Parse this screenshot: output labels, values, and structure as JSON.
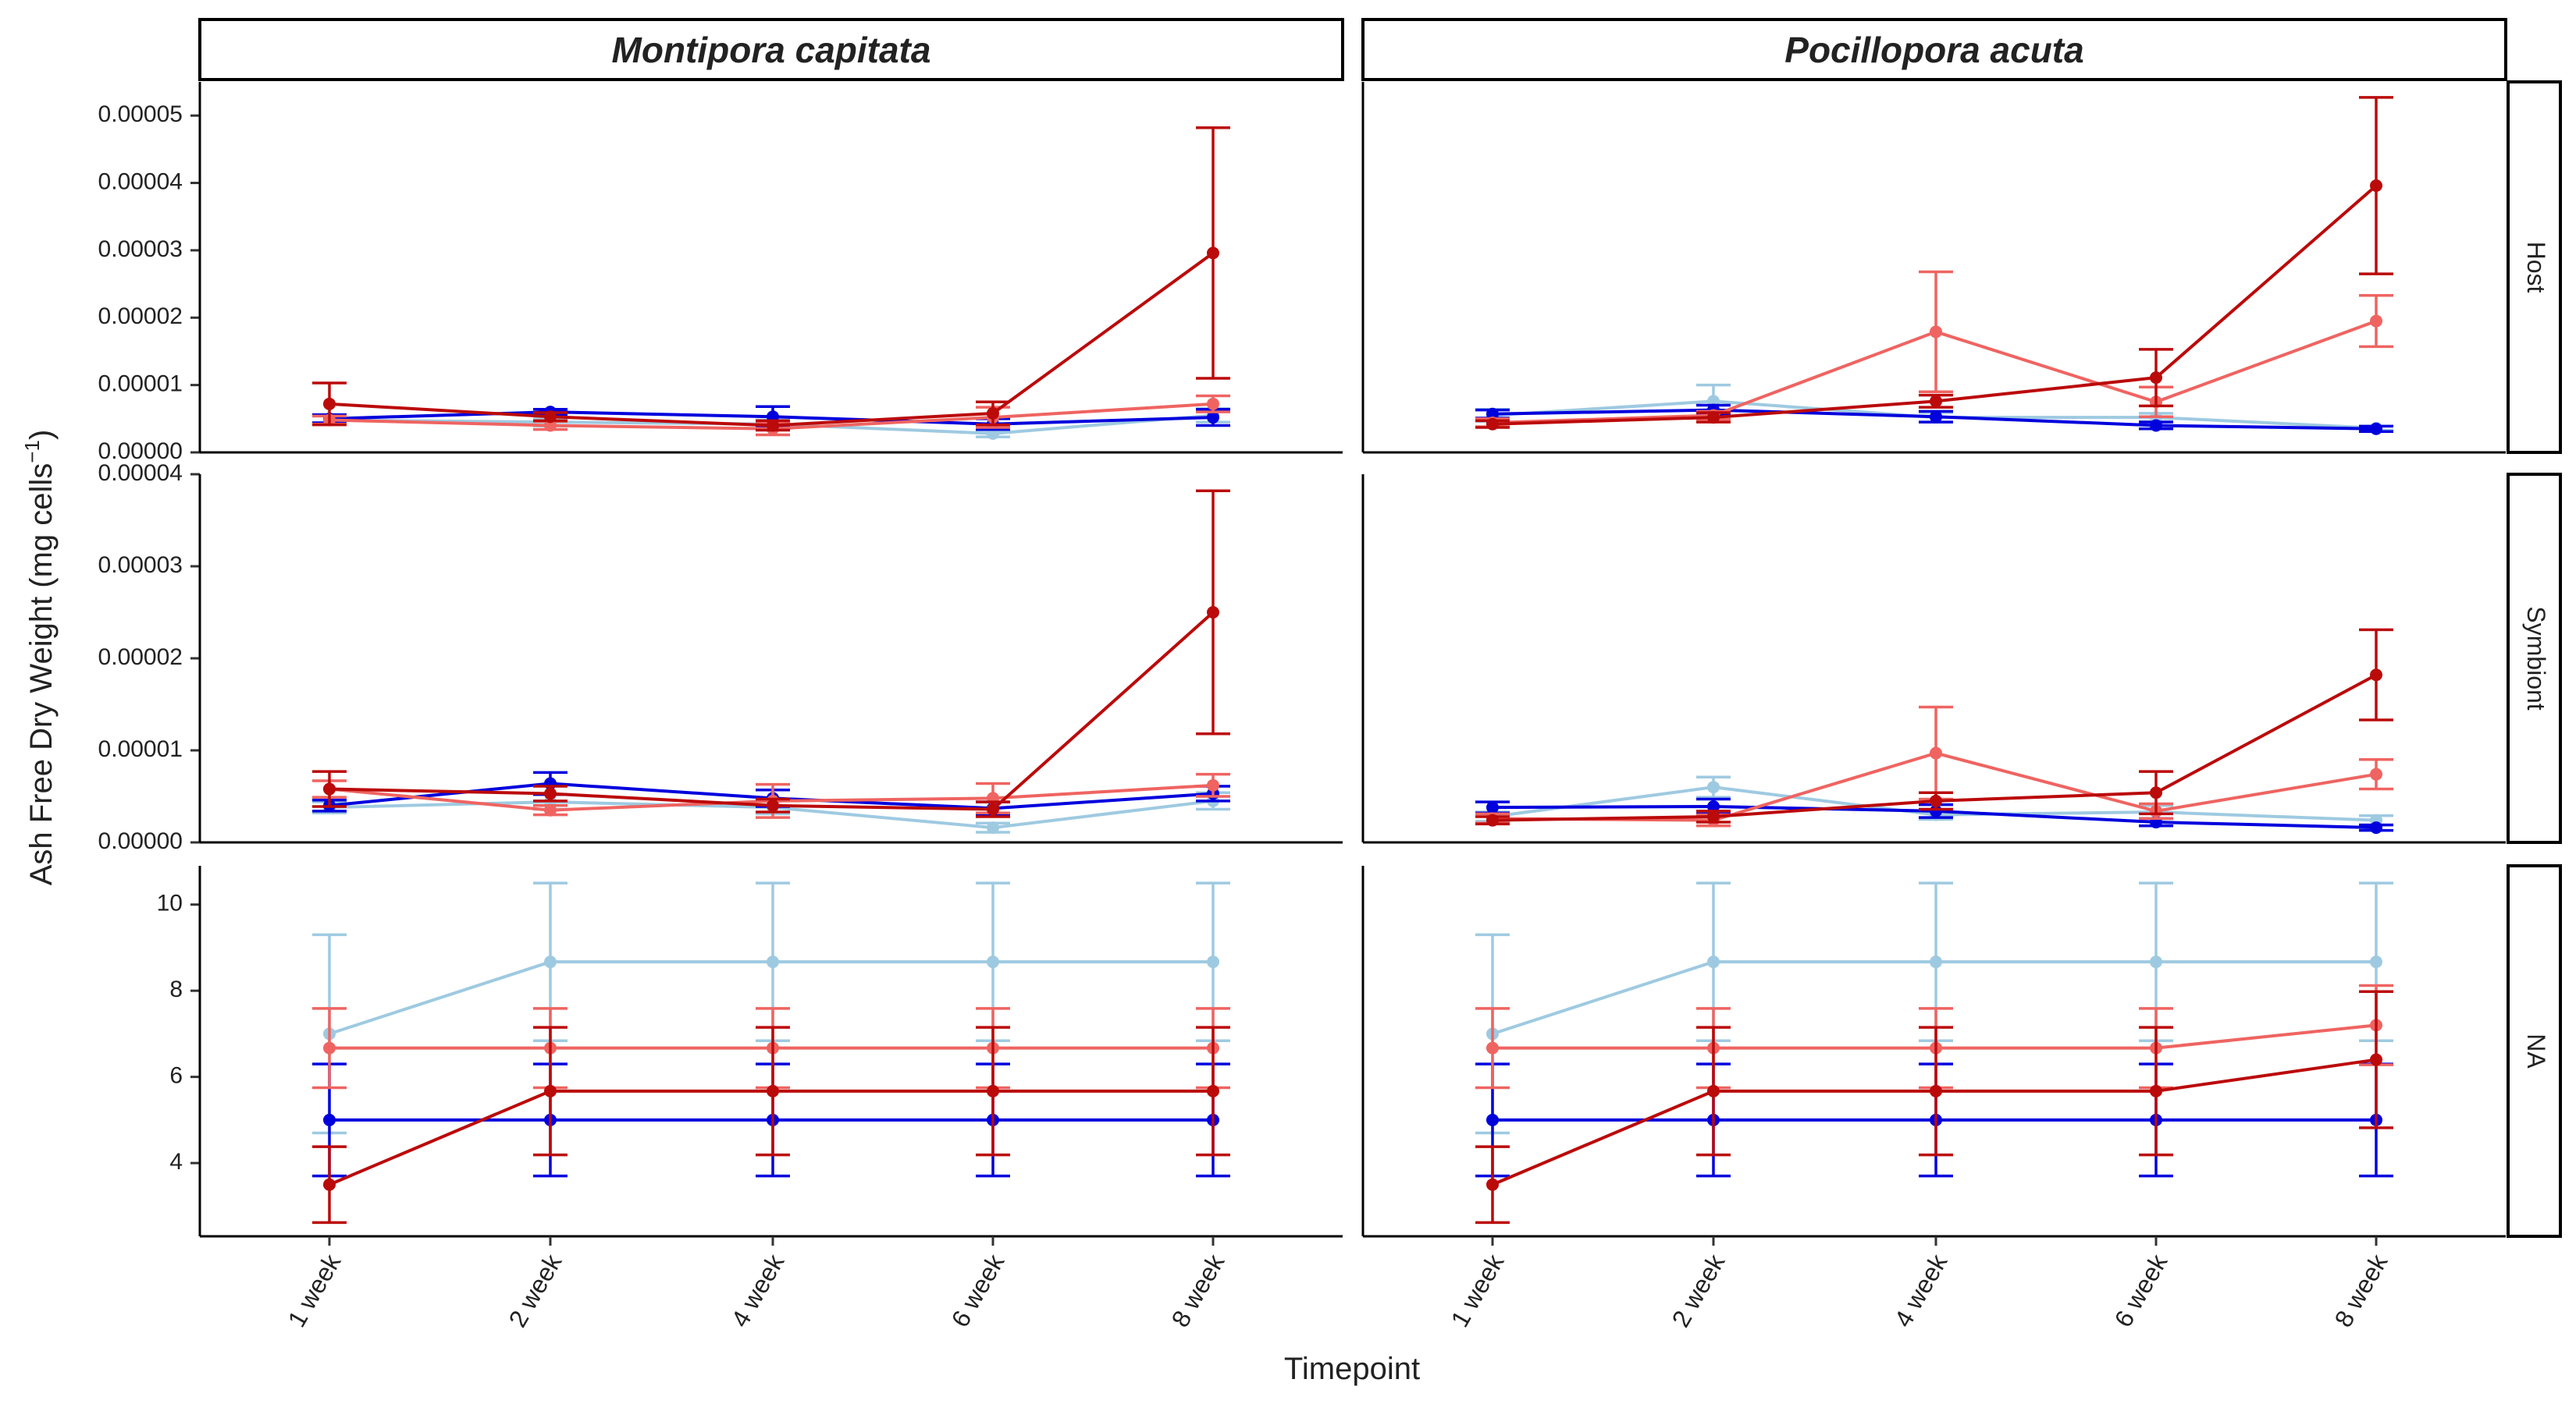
{
  "chart_data": {
    "type": "line",
    "x_title": "Timepoint",
    "y_title_main": "Ash Free Dry Weight (mg cells",
    "y_title_sup": "−1",
    "y_title_close": ")",
    "timepoints": [
      "1 week",
      "2 week",
      "4 week",
      "6 week",
      "8 week"
    ],
    "columns": [
      "Montipora capitata",
      "Pocillopora acuta"
    ],
    "rows": [
      "Host",
      "Symbiont",
      "NA"
    ],
    "colors": {
      "treatment_1": "#9ecae1",
      "treatment_2": "#0000dd",
      "treatment_3": "#ef6461",
      "treatment_4": "#bb0a0a"
    },
    "panels": {
      "Host": {
        "ylim": [
          0,
          5.5e-05
        ],
        "yticks": [
          {
            "v": 0,
            "label": "0.00000"
          },
          {
            "v": 1e-05,
            "label": "0.00001"
          },
          {
            "v": 2e-05,
            "label": "0.00002"
          },
          {
            "v": 3e-05,
            "label": "0.00003"
          },
          {
            "v": 4e-05,
            "label": "0.00004"
          },
          {
            "v": 5e-05,
            "label": "0.00005"
          }
        ],
        "Montipora capitata": [
          {
            "color": "treatment_1",
            "values": [
              4.8e-06,
              4.5e-06,
              4.2e-06,
              2.8e-06,
              5.5e-06
            ],
            "errors": [
              6e-07,
              6e-07,
              6e-07,
              5e-07,
              1e-06
            ]
          },
          {
            "color": "treatment_2",
            "values": [
              5e-06,
              6e-06,
              5.3e-06,
              4.2e-06,
              5.2e-06
            ],
            "errors": [
              6e-07,
              4e-07,
              1.5e-06,
              8e-07,
              1.2e-06
            ]
          },
          {
            "color": "treatment_3",
            "values": [
              4.8e-06,
              4e-06,
              3.5e-06,
              5.2e-06,
              7.2e-06
            ],
            "errors": [
              6e-07,
              6e-07,
              9e-07,
              1.5e-06,
              1.2e-06
            ]
          },
          {
            "color": "treatment_4",
            "values": [
              7.2e-06,
              5.3e-06,
              4e-06,
              5.8e-06,
              2.96e-05
            ],
            "errors": [
              3.1e-06,
              6e-07,
              7e-07,
              1.7e-06,
              1.86e-05
            ]
          }
        ],
        "Pocillopora acuta": [
          {
            "color": "treatment_1",
            "values": [
              5.5e-06,
              7.6e-06,
              5.2e-06,
              5.2e-06,
              3.6e-06
            ],
            "errors": [
              9e-07,
              2.4e-06,
              7e-07,
              6e-07,
              3e-07
            ]
          },
          {
            "color": "treatment_2",
            "values": [
              5.7e-06,
              6.3e-06,
              5.3e-06,
              4e-06,
              3.5e-06
            ],
            "errors": [
              6e-07,
              7e-07,
              8e-07,
              5e-07,
              4e-07
            ]
          },
          {
            "color": "treatment_3",
            "values": [
              4.4e-06,
              5.5e-06,
              1.79e-05,
              7.5e-06,
              1.95e-05
            ],
            "errors": [
              6e-07,
              6e-07,
              8.9e-06,
              2.2e-06,
              3.8e-06
            ]
          },
          {
            "color": "treatment_4",
            "values": [
              4.2e-06,
              5.2e-06,
              7.6e-06,
              1.11e-05,
              3.96e-05
            ],
            "errors": [
              5e-07,
              7e-07,
              9e-07,
              4.2e-06,
              1.31e-05
            ]
          }
        ]
      },
      "Symbiont": {
        "ylim": [
          0,
          4e-05
        ],
        "yticks": [
          {
            "v": 0,
            "label": "0.00000"
          },
          {
            "v": 1e-05,
            "label": "0.00001"
          },
          {
            "v": 2e-05,
            "label": "0.00002"
          },
          {
            "v": 3e-05,
            "label": "0.00003"
          },
          {
            "v": 4e-05,
            "label": "0.00004"
          }
        ],
        "Montipora capitata": [
          {
            "color": "treatment_1",
            "values": [
              3.8e-06,
              4.4e-06,
              3.8e-06,
              1.6e-06,
              4.5e-06
            ],
            "errors": [
              6e-07,
              8e-07,
              7e-07,
              5e-07,
              9e-07
            ]
          },
          {
            "color": "treatment_2",
            "values": [
              4e-06,
              6.4e-06,
              4.8e-06,
              3.7e-06,
              5.3e-06
            ],
            "errors": [
              6e-07,
              1.2e-06,
              9e-07,
              7e-07,
              8e-07
            ]
          },
          {
            "color": "treatment_3",
            "values": [
              5.8e-06,
              3.5e-06,
              4.5e-06,
              4.8e-06,
              6.2e-06
            ],
            "errors": [
              9e-07,
              5e-07,
              1.8e-06,
              1.6e-06,
              1.2e-06
            ]
          },
          {
            "color": "treatment_4",
            "values": [
              5.8e-06,
              5.3e-06,
              4e-06,
              3.6e-06,
              2.5e-05
            ],
            "errors": [
              1.9e-06,
              8e-07,
              7e-07,
              8e-07,
              1.32e-05
            ]
          }
        ],
        "Pocillopora acuta": [
          {
            "color": "treatment_1",
            "values": [
              2.8e-06,
              6e-06,
              3e-06,
              3.3e-06,
              2.4e-06
            ],
            "errors": [
              5e-07,
              1.1e-06,
              5e-07,
              7e-07,
              5e-07
            ]
          },
          {
            "color": "treatment_2",
            "values": [
              3.8e-06,
              3.9e-06,
              3.4e-06,
              2.2e-06,
              1.6e-06
            ],
            "errors": [
              6e-07,
              8e-07,
              7e-07,
              4e-07,
              3e-07
            ]
          },
          {
            "color": "treatment_3",
            "values": [
              2.6e-06,
              2.4e-06,
              9.7e-06,
              3.4e-06,
              7.4e-06
            ],
            "errors": [
              5e-07,
              6e-07,
              5e-06,
              8e-07,
              1.6e-06
            ]
          },
          {
            "color": "treatment_4",
            "values": [
              2.4e-06,
              2.8e-06,
              4.5e-06,
              5.4e-06,
              1.82e-05
            ],
            "errors": [
              4e-07,
              6e-07,
              9e-07,
              2.3e-06,
              4.9e-06
            ]
          }
        ]
      },
      "NA": {
        "ylim": [
          2.3,
          10.9
        ],
        "yticks": [
          {
            "v": 4,
            "label": "4"
          },
          {
            "v": 6,
            "label": "6"
          },
          {
            "v": 8,
            "label": "8"
          },
          {
            "v": 10,
            "label": "10"
          }
        ],
        "Montipora capitata": [
          {
            "color": "treatment_1",
            "values": [
              7.0,
              8.67,
              8.67,
              8.67,
              8.67
            ],
            "errors": [
              2.3,
              1.83,
              1.83,
              1.83,
              1.83
            ]
          },
          {
            "color": "treatment_2",
            "values": [
              5.0,
              5.0,
              5.0,
              5.0,
              5.0
            ],
            "errors": [
              1.3,
              1.3,
              1.3,
              1.3,
              1.3
            ]
          },
          {
            "color": "treatment_3",
            "values": [
              6.67,
              6.67,
              6.67,
              6.67,
              6.67
            ],
            "errors": [
              0.92,
              0.92,
              0.92,
              0.92,
              0.92
            ]
          },
          {
            "color": "treatment_4",
            "values": [
              3.5,
              5.67,
              5.67,
              5.67,
              5.67
            ],
            "errors": [
              0.88,
              1.48,
              1.48,
              1.48,
              1.48
            ]
          }
        ],
        "Pocillopora acuta": [
          {
            "color": "treatment_1",
            "values": [
              7.0,
              8.67,
              8.67,
              8.67,
              8.67
            ],
            "errors": [
              2.3,
              1.83,
              1.83,
              1.83,
              1.83
            ]
          },
          {
            "color": "treatment_2",
            "values": [
              5.0,
              5.0,
              5.0,
              5.0,
              5.0
            ],
            "errors": [
              1.3,
              1.3,
              1.3,
              1.3,
              1.3
            ]
          },
          {
            "color": "treatment_3",
            "values": [
              6.67,
              6.67,
              6.67,
              6.67,
              7.2
            ],
            "errors": [
              0.92,
              0.92,
              0.92,
              0.92,
              0.92
            ]
          },
          {
            "color": "treatment_4",
            "values": [
              3.5,
              5.67,
              5.67,
              5.67,
              6.4
            ],
            "errors": [
              0.88,
              1.48,
              1.48,
              1.48,
              1.58
            ]
          }
        ]
      }
    }
  }
}
